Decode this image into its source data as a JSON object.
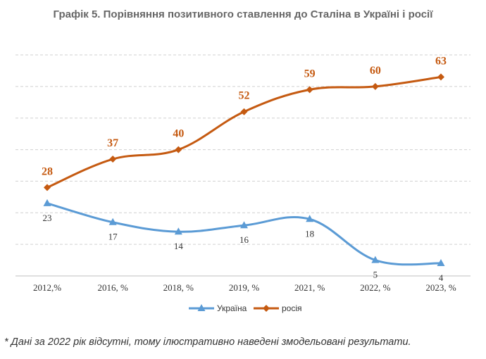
{
  "title": "Графік 5. Порівняння позитивного ставлення до Сталіна в Україні і росії",
  "footnote": "* Дані за 2022 рік відсутні, тому ілюстративно наведені змодельовані результати.",
  "colors": {
    "russia": "#C55A11",
    "ukraine": "#5B9BD5",
    "grid": "#D0D0D0",
    "axis": "#BFBFBF"
  },
  "chart_data": {
    "type": "line",
    "categories": [
      "2012,%",
      "2016, %",
      "2018, %",
      "2019, %",
      "2021, %",
      "2022, %",
      "2023, %"
    ],
    "series": [
      {
        "name": "Україна",
        "values": [
          23,
          17,
          14,
          16,
          18,
          5,
          4
        ],
        "marker": "triangle",
        "color": "#5B9BD5"
      },
      {
        "name": "росія",
        "values": [
          28,
          37,
          40,
          52,
          59,
          60,
          63
        ],
        "marker": "diamond",
        "color": "#C55A11"
      }
    ],
    "ylim": [
      0,
      70
    ],
    "grid": true,
    "legend": "bottom"
  }
}
